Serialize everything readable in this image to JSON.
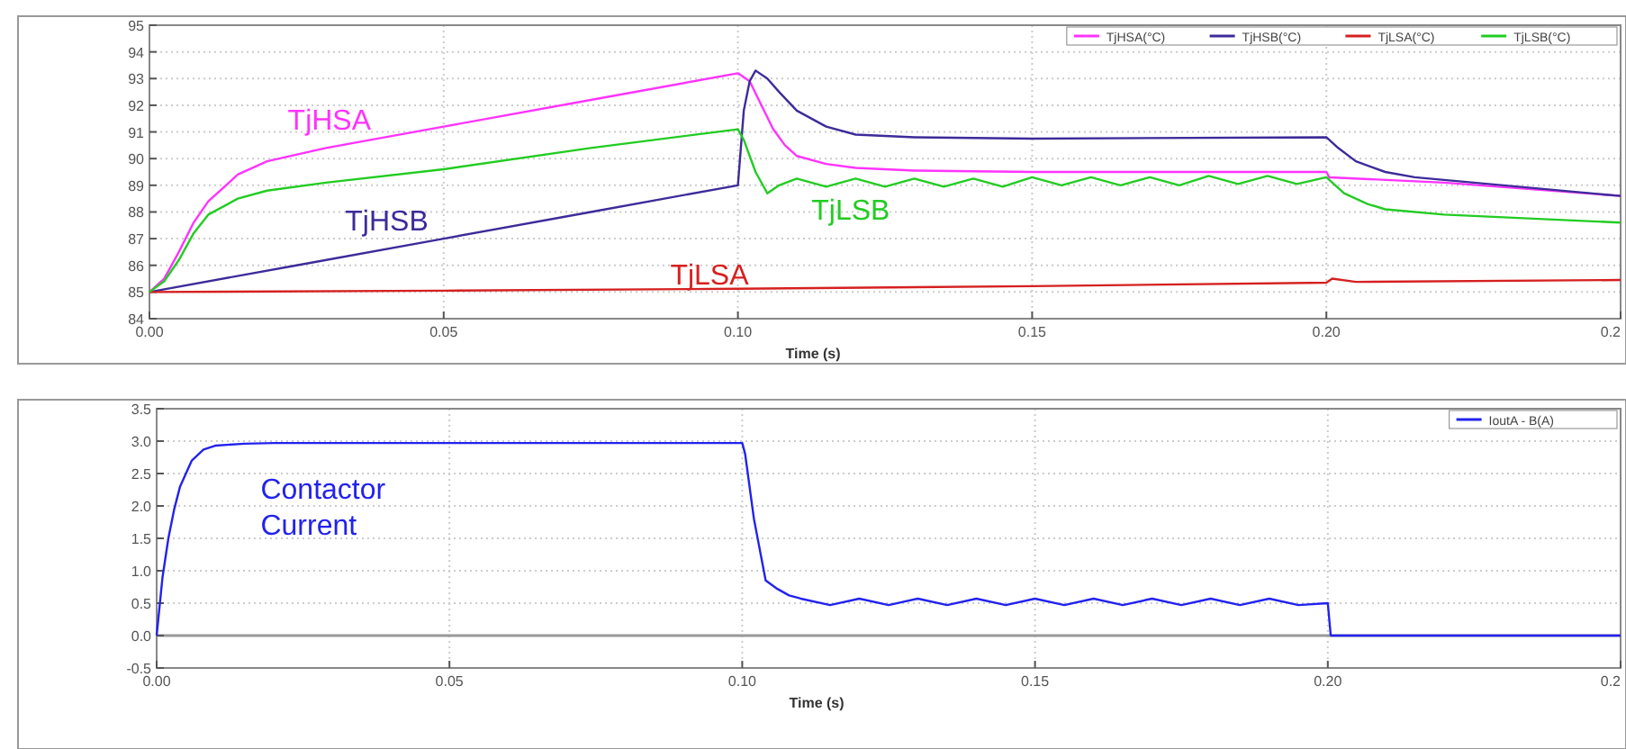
{
  "chart_data": [
    {
      "type": "line",
      "xlabel": "Time (s)",
      "xlim": [
        0,
        0.25
      ],
      "xticks": [
        {
          "value": 0,
          "label": "0.00"
        },
        {
          "value": 0.05,
          "label": "0.05"
        },
        {
          "value": 0.1,
          "label": "0.10"
        },
        {
          "value": 0.15,
          "label": "0.15"
        },
        {
          "value": 0.2,
          "label": "0.20"
        },
        {
          "value": 0.25,
          "label": "0.2"
        }
      ],
      "ylim": [
        84,
        95
      ],
      "yticks": [
        84,
        85,
        86,
        87,
        88,
        89,
        90,
        91,
        92,
        93,
        94,
        95
      ],
      "grid": true,
      "legend": "top right",
      "annotations": [
        "TjHSA",
        "TjHSB",
        "TjLSA",
        "TjLSB"
      ],
      "series": [
        {
          "name": "TjHSA(°C)",
          "color": "#ff33ff",
          "x": [
            0,
            0.0025,
            0.005,
            0.0075,
            0.01,
            0.015,
            0.02,
            0.03,
            0.05,
            0.075,
            0.1,
            0.102,
            0.104,
            0.106,
            0.108,
            0.11,
            0.115,
            0.12,
            0.13,
            0.15,
            0.2,
            0.2005,
            0.22,
            0.25
          ],
          "values": [
            85,
            85.5,
            86.5,
            87.6,
            88.4,
            89.4,
            89.9,
            90.4,
            91.2,
            92.2,
            93.2,
            92.9,
            92.0,
            91.1,
            90.5,
            90.1,
            89.8,
            89.65,
            89.55,
            89.5,
            89.5,
            89.3,
            89.1,
            88.6
          ]
        },
        {
          "name": "TjHSB(°C)",
          "color": "#3d2b9a",
          "x": [
            0,
            0.025,
            0.05,
            0.075,
            0.1,
            0.1005,
            0.101,
            0.102,
            0.103,
            0.105,
            0.107,
            0.11,
            0.115,
            0.12,
            0.13,
            0.15,
            0.2,
            0.202,
            0.205,
            0.21,
            0.215,
            0.22,
            0.25
          ],
          "values": [
            85,
            86,
            87,
            88,
            89,
            90.4,
            91.8,
            92.9,
            93.3,
            93.0,
            92.5,
            91.8,
            91.2,
            90.9,
            90.8,
            90.75,
            90.8,
            90.4,
            89.9,
            89.5,
            89.3,
            89.2,
            88.6
          ]
        },
        {
          "name": "TjLSA(°C)",
          "color": "#d62020",
          "x": [
            0,
            0.05,
            0.1,
            0.15,
            0.2,
            0.201,
            0.205,
            0.25
          ],
          "values": [
            85,
            85.05,
            85.12,
            85.22,
            85.35,
            85.5,
            85.38,
            85.45
          ]
        },
        {
          "name": "TjLSB(°C)",
          "color": "#22cc22",
          "x": [
            0,
            0.0025,
            0.005,
            0.0075,
            0.01,
            0.015,
            0.02,
            0.03,
            0.05,
            0.075,
            0.1,
            0.101,
            0.103,
            0.105,
            0.107,
            0.11,
            0.115,
            0.12,
            0.125,
            0.13,
            0.135,
            0.14,
            0.145,
            0.15,
            0.155,
            0.16,
            0.165,
            0.17,
            0.175,
            0.18,
            0.185,
            0.19,
            0.195,
            0.2,
            0.203,
            0.207,
            0.21,
            0.22,
            0.25
          ],
          "values": [
            85,
            85.4,
            86.2,
            87.2,
            87.9,
            88.5,
            88.8,
            89.1,
            89.6,
            90.4,
            91.1,
            90.7,
            89.5,
            88.7,
            89.0,
            89.25,
            88.95,
            89.25,
            88.95,
            89.25,
            88.95,
            89.25,
            88.95,
            89.3,
            89.0,
            89.3,
            89.0,
            89.3,
            89.0,
            89.35,
            89.05,
            89.35,
            89.05,
            89.3,
            88.7,
            88.3,
            88.1,
            87.9,
            87.6
          ]
        }
      ]
    },
    {
      "type": "line",
      "xlabel": "Time (s)",
      "xlim": [
        0,
        0.25
      ],
      "xticks": [
        {
          "value": 0,
          "label": "0.00"
        },
        {
          "value": 0.05,
          "label": "0.05"
        },
        {
          "value": 0.1,
          "label": "0.10"
        },
        {
          "value": 0.15,
          "label": "0.15"
        },
        {
          "value": 0.2,
          "label": "0.20"
        },
        {
          "value": 0.25,
          "label": "0.2"
        }
      ],
      "ylim": [
        -0.5,
        3.5
      ],
      "yticks": [
        {
          "value": -0.5,
          "label": "-0.5"
        },
        {
          "value": 0,
          "label": "0.0"
        },
        {
          "value": 0.5,
          "label": "0.5"
        },
        {
          "value": 1,
          "label": "1.0"
        },
        {
          "value": 1.5,
          "label": "1.5"
        },
        {
          "value": 2,
          "label": "2.0"
        },
        {
          "value": 2.5,
          "label": "2.5"
        },
        {
          "value": 3,
          "label": "3.0"
        },
        {
          "value": 3.5,
          "label": "3.5"
        }
      ],
      "grid": true,
      "legend": "top right",
      "annotations": [
        "Contactor Current"
      ],
      "series": [
        {
          "name": "IoutA - B(A)",
          "color": "#2222ee",
          "x": [
            0,
            0.001,
            0.002,
            0.003,
            0.004,
            0.006,
            0.008,
            0.01,
            0.015,
            0.02,
            0.1,
            0.1005,
            0.102,
            0.104,
            0.106,
            0.108,
            0.11,
            0.115,
            0.12,
            0.125,
            0.13,
            0.135,
            0.14,
            0.145,
            0.15,
            0.155,
            0.16,
            0.165,
            0.17,
            0.175,
            0.18,
            0.185,
            0.19,
            0.195,
            0.2,
            0.2005,
            0.25
          ],
          "values": [
            0,
            0.9,
            1.5,
            1.95,
            2.3,
            2.7,
            2.87,
            2.93,
            2.96,
            2.97,
            2.97,
            2.8,
            1.8,
            0.85,
            0.72,
            0.62,
            0.57,
            0.47,
            0.57,
            0.47,
            0.57,
            0.47,
            0.57,
            0.47,
            0.57,
            0.47,
            0.57,
            0.47,
            0.57,
            0.47,
            0.57,
            0.47,
            0.57,
            0.47,
            0.5,
            0,
            0
          ]
        }
      ]
    }
  ]
}
